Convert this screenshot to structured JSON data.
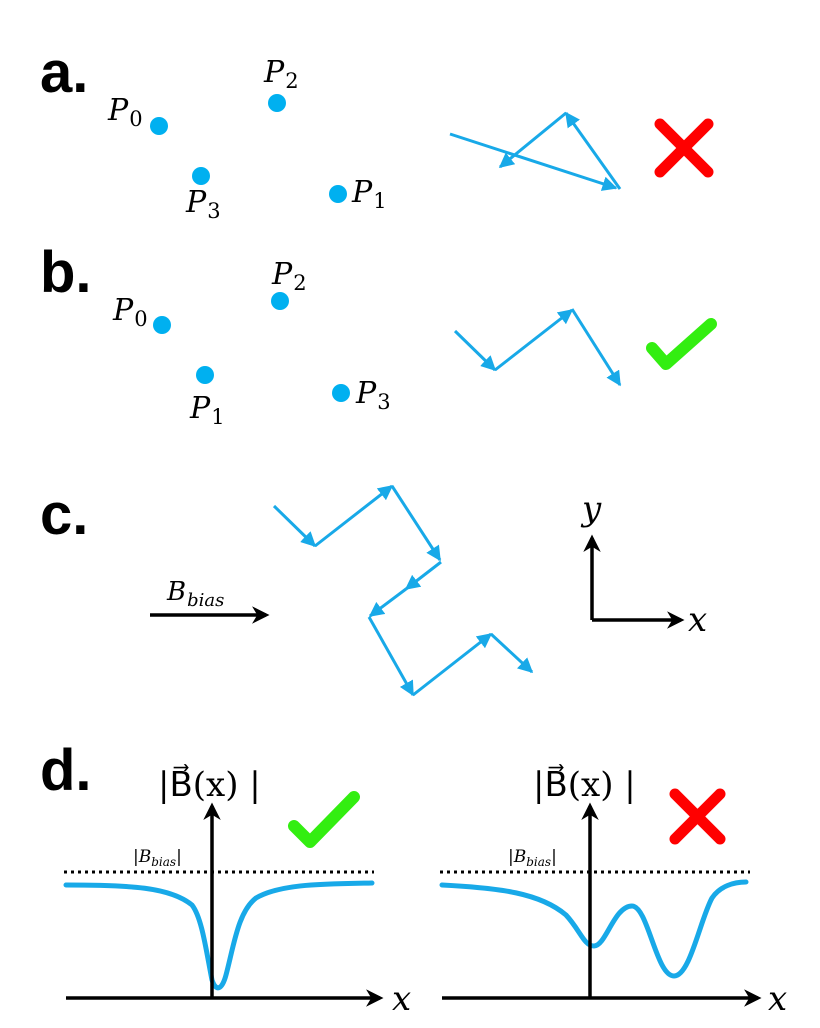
{
  "panels": {
    "a": {
      "label": "a.",
      "points": [
        {
          "name": "P",
          "sub": "0"
        },
        {
          "name": "P",
          "sub": "2"
        },
        {
          "name": "P",
          "sub": "3"
        },
        {
          "name": "P",
          "sub": "1"
        }
      ],
      "verdict": "cross"
    },
    "b": {
      "label": "b.",
      "points": [
        {
          "name": "P",
          "sub": "0"
        },
        {
          "name": "P",
          "sub": "2"
        },
        {
          "name": "P",
          "sub": "1"
        },
        {
          "name": "P",
          "sub": "3"
        }
      ],
      "verdict": "check"
    },
    "c": {
      "label": "c.",
      "bias_label": {
        "name": "B",
        "sub": "bias"
      },
      "axes": {
        "x": "x",
        "y": "y"
      }
    },
    "d": {
      "label": "d.",
      "left": {
        "ylabel": "|B⃗(x) |",
        "bias_label": {
          "name": "|B",
          "sub": "bias",
          "close": "|"
        },
        "xlabel": "x",
        "verdict": "check"
      },
      "right": {
        "ylabel": "|B⃗(x) |",
        "bias_label": {
          "name": "|B",
          "sub": "bias",
          "close": "|"
        },
        "xlabel": "x",
        "verdict": "cross"
      }
    }
  },
  "colors": {
    "path": "#18A9E8",
    "dot": "#00B0F0",
    "cross": "#FF0000",
    "check": "#33EE11"
  }
}
